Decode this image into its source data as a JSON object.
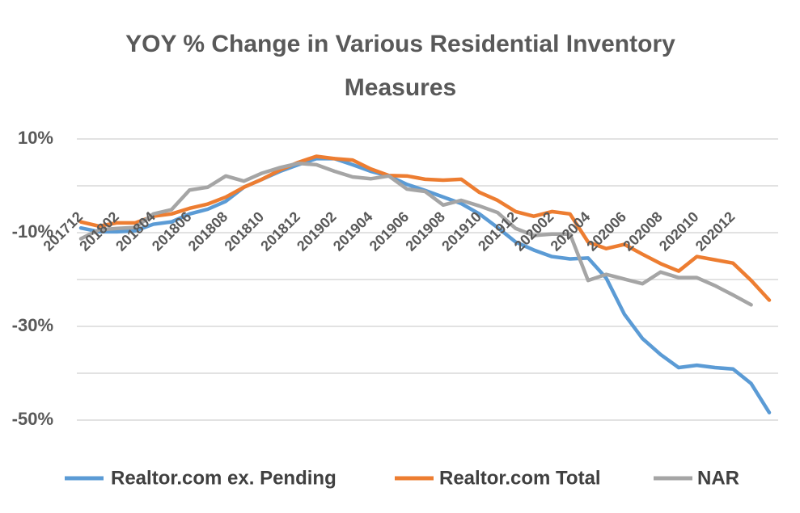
{
  "chart_data": {
    "type": "line",
    "title": "YOY % Change in Various Residential Inventory Measures",
    "categories": [
      "201712",
      null,
      "201802",
      null,
      "201804",
      null,
      "201806",
      null,
      "201808",
      null,
      "201810",
      null,
      "201812",
      null,
      "201902",
      null,
      "201904",
      null,
      "201906",
      null,
      "201908",
      null,
      "201910",
      null,
      "201912",
      null,
      "202002",
      null,
      "202004",
      null,
      "202006",
      null,
      "202008",
      null,
      "202010",
      null,
      "202012",
      null,
      null
    ],
    "series": [
      {
        "name": "Realtor.com ex. Pending",
        "color": "#5b9bd5",
        "values": [
          -9,
          -9.8,
          -9.8,
          -9.6,
          -8.2,
          -7.7,
          -6,
          -5,
          -3.3,
          -0.3,
          1.4,
          3.1,
          4.5,
          5.8,
          5.8,
          4.5,
          3.1,
          2.1,
          0.3,
          -1,
          -2.4,
          -3.8,
          -6,
          -8.9,
          -12,
          -13.7,
          -15.1,
          -15.6,
          -15.4,
          -19.7,
          -27.4,
          -32.6,
          -36,
          -38.8,
          -38.3,
          -38.8,
          -39.1,
          -42.2,
          -48.4
        ]
      },
      {
        "name": "Realtor.com Total",
        "color": "#ed7d31",
        "values": [
          -7.7,
          -8.6,
          -7.9,
          -7.9,
          -6.5,
          -6,
          -4.8,
          -3.9,
          -2.4,
          -0.3,
          1.4,
          3.4,
          5,
          6.3,
          5.8,
          5.5,
          3.6,
          2.2,
          2.1,
          1.4,
          1.2,
          1.4,
          -1.4,
          -3.1,
          -5.5,
          -6.5,
          -5.5,
          -6,
          -12,
          -13.4,
          -12.5,
          -14.6,
          -16.6,
          -18.2,
          -15.1,
          -15.8,
          -16.5,
          -20.2,
          -24.4
        ]
      },
      {
        "name": "NAR",
        "color": "#a5a5a5",
        "values": [
          -11.3,
          -9.4,
          -9.1,
          -8.9,
          -6,
          -5.1,
          -0.9,
          -0.3,
          2.1,
          1,
          2.7,
          3.9,
          4.8,
          4.5,
          3.1,
          1.9,
          1.5,
          2.1,
          -0.7,
          -1.2,
          -4.1,
          -3.1,
          -4.3,
          -5.7,
          -9.1,
          -10.6,
          -10.3,
          -10.3,
          -20.2,
          -18.9,
          -19.9,
          -20.9,
          -18.4,
          -19.6,
          -19.6,
          -21.3,
          -23.3,
          -25.4,
          null
        ]
      }
    ],
    "ylim": [
      -50,
      10
    ],
    "yticks": [
      {
        "value": 10,
        "label": "10%"
      },
      {
        "value": 0,
        "label": null
      },
      {
        "value": -10,
        "label": "-10%"
      },
      {
        "value": -20,
        "label": null
      },
      {
        "value": -30,
        "label": "-30%"
      },
      {
        "value": -40,
        "label": null
      },
      {
        "value": -50,
        "label": "-50%"
      }
    ],
    "grid": true,
    "legend": "bottom"
  }
}
